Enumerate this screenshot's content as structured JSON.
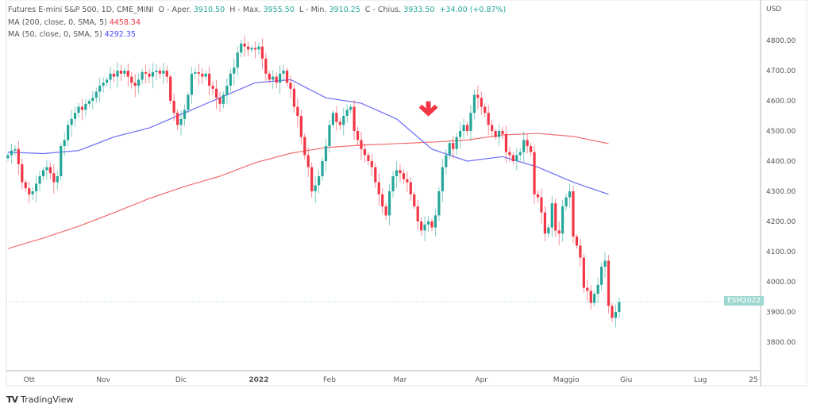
{
  "legend": {
    "symbol": "Futures E-mini S&P 500, 1D, CME_MINI",
    "open_label": "O - Aper.",
    "open": "3910.50",
    "high_label": "H - Max.",
    "high": "3955.50",
    "low_label": "L - Min.",
    "low": "3910.25",
    "close_label": "C - Chius.",
    "close": "3933.50",
    "change": "+34.00 (+0.87%)",
    "ma200_label": "MA (200, close, 0, SMA, 5)",
    "ma200_value": "4458.34",
    "ma50_label": "MA (50, close, 0, SMA, 5)",
    "ma50_value": "4292.35"
  },
  "price_tag": "ESM2022",
  "footer": {
    "brand": "TradingView"
  },
  "colors": {
    "up": "#26a69a",
    "down": "#f23645",
    "ma200": "#f26d6d",
    "ma50": "#6b6bf5",
    "arrow": "#f23645"
  },
  "chart_data": {
    "type": "candlestick",
    "currency_label": "USD",
    "y_ticks": [
      "4800.00",
      "4700.00",
      "4600.00",
      "4500.00",
      "4400.00",
      "4300.00",
      "4200.00",
      "4100.00",
      "4000.00",
      "3900.00",
      "3800.00"
    ],
    "ylim": [
      3705,
      4935
    ],
    "x_ticks": [
      {
        "label": "Ott",
        "bar": 6
      },
      {
        "label": "Nov",
        "bar": 27
      },
      {
        "label": "Dic",
        "bar": 49
      },
      {
        "label": "2022",
        "bar": 71,
        "bold": true
      },
      {
        "label": "Feb",
        "bar": 91
      },
      {
        "label": "Mar",
        "bar": 111
      },
      {
        "label": "Apr",
        "bar": 134
      },
      {
        "label": "Maggio",
        "bar": 158
      },
      {
        "label": "Giu",
        "bar": 175
      },
      {
        "label": "Lug",
        "bar": 196
      },
      {
        "label": "25",
        "bar": 211
      }
    ],
    "closes": [
      4420,
      4435,
      4440,
      4390,
      4330,
      4310,
      4290,
      4300,
      4325,
      4350,
      4370,
      4380,
      4360,
      4330,
      4350,
      4450,
      4470,
      4520,
      4540,
      4560,
      4580,
      4570,
      4590,
      4600,
      4610,
      4630,
      4650,
      4660,
      4670,
      4690,
      4680,
      4700,
      4690,
      4700,
      4680,
      4660,
      4650,
      4670,
      4695,
      4690,
      4680,
      4695,
      4700,
      4690,
      4700,
      4680,
      4600,
      4560,
      4520,
      4540,
      4570,
      4620,
      4690,
      4695,
      4690,
      4680,
      4690,
      4650,
      4640,
      4610,
      4590,
      4620,
      4650,
      4690,
      4710,
      4760,
      4790,
      4780,
      4770,
      4775,
      4770,
      4780,
      4740,
      4690,
      4670,
      4680,
      4660,
      4690,
      4700,
      4660,
      4640,
      4580,
      4550,
      4480,
      4420,
      4380,
      4300,
      4320,
      4350,
      4400,
      4450,
      4520,
      4560,
      4530,
      4520,
      4550,
      4570,
      4580,
      4500,
      4470,
      4440,
      4420,
      4400,
      4380,
      4330,
      4290,
      4250,
      4220,
      4300,
      4350,
      4370,
      4360,
      4340,
      4330,
      4290,
      4250,
      4200,
      4170,
      4190,
      4200,
      4180,
      4220,
      4300,
      4380,
      4420,
      4460,
      4440,
      4480,
      4500,
      4520,
      4500,
      4560,
      4620,
      4610,
      4580,
      4560,
      4520,
      4500,
      4480,
      4500,
      4490,
      4430,
      4420,
      4400,
      4420,
      4430,
      4470,
      4450,
      4430,
      4290,
      4280,
      4230,
      4160,
      4180,
      4260,
      4170,
      4160,
      4250,
      4280,
      4300,
      4150,
      4120,
      4080,
      3980,
      3970,
      3930,
      3960,
      3990,
      4050,
      4070,
      3920,
      3880,
      3900,
      3933
    ],
    "ma200_every10": [
      4110,
      4145,
      4184,
      4229,
      4276,
      4316,
      4350,
      4395,
      4426,
      4445,
      4453,
      4458,
      4463,
      4470,
      4487,
      4492,
      4482,
      4458
    ],
    "ma50_every10": [
      4430,
      4425,
      4435,
      4480,
      4510,
      4560,
      4610,
      4660,
      4670,
      4610,
      4592,
      4540,
      4440,
      4400,
      4415,
      4380,
      4330,
      4290
    ],
    "last_price": 3933.5,
    "annotation": {
      "type": "down-arrow",
      "bar": 119,
      "price": 4530
    }
  }
}
